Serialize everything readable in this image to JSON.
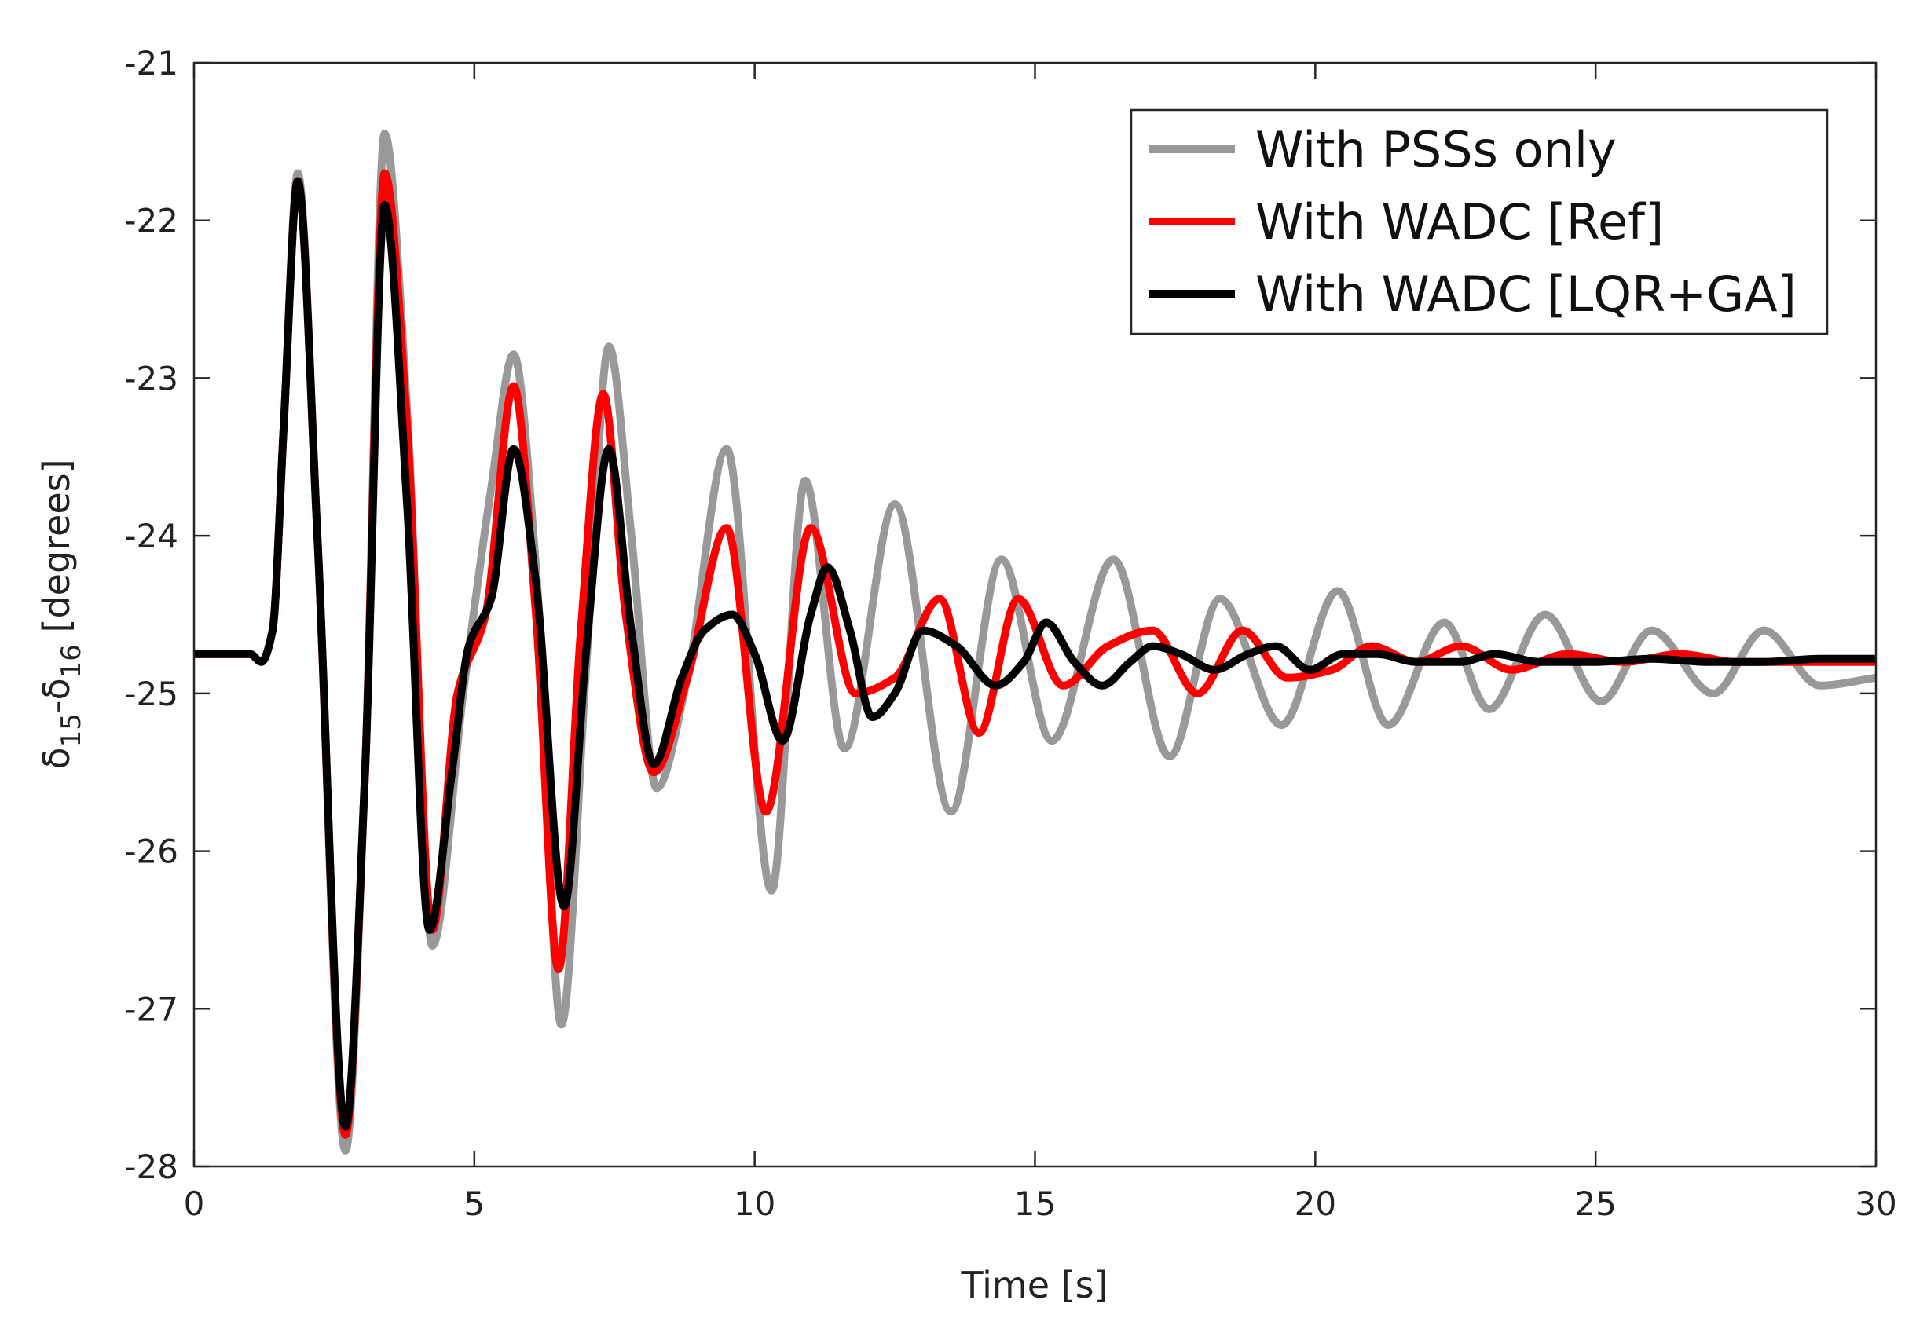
{
  "chart_data": {
    "type": "line",
    "title": "",
    "xlabel": "Time [s]",
    "ylabel": {
      "delta": "δ",
      "sub1": "15",
      "dash": "-",
      "sub2": "16",
      "unit": " [degrees]"
    },
    "xlim": [
      0,
      30
    ],
    "ylim": [
      -28,
      -21
    ],
    "xticks": [
      0,
      5,
      10,
      15,
      20,
      25,
      30
    ],
    "xtick_labels": [
      "0",
      "5",
      "10",
      "15",
      "20",
      "25",
      "30"
    ],
    "yticks": [
      -21,
      -22,
      -23,
      -24,
      -25,
      -26,
      -27,
      -28
    ],
    "ytick_labels": [
      "-21",
      "-22",
      "-23",
      "-24",
      "-25",
      "-26",
      "-27",
      "-28"
    ],
    "grid": false,
    "legend_position": "top-right",
    "series": [
      {
        "name": "With PSSs only",
        "color": "#999999",
        "x": [
          0,
          1.0,
          1.2,
          1.4,
          1.6,
          1.85,
          2.2,
          2.7,
          3.05,
          3.4,
          3.8,
          4.25,
          4.8,
          5.3,
          5.7,
          6.1,
          6.55,
          7.0,
          7.4,
          7.8,
          8.25,
          8.8,
          9.5,
          10.3,
          10.9,
          11.6,
          12.5,
          13.5,
          14.4,
          15.3,
          16.4,
          17.4,
          18.3,
          19.4,
          20.4,
          21.3,
          22.3,
          23.1,
          24.1,
          25.1,
          26.0,
          27.1,
          28.0,
          29.0,
          30.0
        ],
        "values": [
          -24.75,
          -24.75,
          -24.8,
          -24.6,
          -23.3,
          -21.7,
          -24.0,
          -27.9,
          -25.5,
          -21.45,
          -23.2,
          -26.6,
          -25.0,
          -23.7,
          -22.85,
          -24.2,
          -27.1,
          -24.8,
          -22.8,
          -24.0,
          -25.6,
          -24.9,
          -23.45,
          -26.25,
          -23.65,
          -25.35,
          -23.8,
          -25.75,
          -24.15,
          -25.3,
          -24.15,
          -25.4,
          -24.4,
          -25.2,
          -24.35,
          -25.2,
          -24.55,
          -25.1,
          -24.5,
          -25.05,
          -24.6,
          -25.0,
          -24.6,
          -24.95,
          -24.9
        ]
      },
      {
        "name": "With WADC [Ref]",
        "color": "#ff0000",
        "x": [
          0,
          1.0,
          1.2,
          1.4,
          1.6,
          1.85,
          2.2,
          2.7,
          3.05,
          3.4,
          3.8,
          4.25,
          4.7,
          5.2,
          5.7,
          6.1,
          6.5,
          6.9,
          7.3,
          7.7,
          8.2,
          8.8,
          9.5,
          10.2,
          11.0,
          11.8,
          12.5,
          13.3,
          14.0,
          14.7,
          15.5,
          16.3,
          17.1,
          17.9,
          18.7,
          19.5,
          20.3,
          21.0,
          21.8,
          22.6,
          23.5,
          24.5,
          25.5,
          26.5,
          27.5,
          28.5,
          30.0
        ],
        "values": [
          -24.75,
          -24.75,
          -24.8,
          -24.6,
          -23.3,
          -21.75,
          -24.0,
          -27.8,
          -25.5,
          -21.7,
          -23.3,
          -26.5,
          -25.0,
          -24.5,
          -23.05,
          -24.5,
          -26.75,
          -24.6,
          -23.1,
          -24.5,
          -25.5,
          -24.9,
          -23.95,
          -25.75,
          -23.95,
          -25.0,
          -24.9,
          -24.4,
          -25.25,
          -24.4,
          -24.95,
          -24.7,
          -24.6,
          -25.0,
          -24.6,
          -24.9,
          -24.85,
          -24.7,
          -24.8,
          -24.7,
          -24.85,
          -24.75,
          -24.8,
          -24.75,
          -24.8,
          -24.8,
          -24.8
        ]
      },
      {
        "name": "With WADC [LQR+GA]",
        "color": "#000000",
        "x": [
          0,
          1.0,
          1.2,
          1.4,
          1.6,
          1.85,
          2.2,
          2.7,
          3.05,
          3.4,
          3.8,
          4.2,
          4.6,
          4.9,
          5.3,
          5.7,
          6.1,
          6.6,
          7.0,
          7.4,
          7.8,
          8.2,
          8.7,
          9.1,
          9.6,
          10.0,
          10.5,
          11.0,
          11.3,
          11.7,
          12.1,
          12.5,
          13.0,
          13.6,
          14.3,
          14.8,
          15.2,
          15.7,
          16.2,
          16.7,
          17.1,
          17.6,
          18.2,
          18.8,
          19.3,
          19.9,
          20.5,
          21.1,
          21.8,
          22.6,
          23.2,
          24.0,
          25.0,
          26.0,
          27.0,
          28.0,
          29.0,
          30.0
        ],
        "values": [
          -24.75,
          -24.75,
          -24.8,
          -24.6,
          -23.3,
          -21.75,
          -24.0,
          -27.75,
          -25.5,
          -21.9,
          -23.8,
          -26.5,
          -25.5,
          -24.7,
          -24.4,
          -23.45,
          -24.3,
          -26.35,
          -24.7,
          -23.45,
          -24.6,
          -25.45,
          -24.9,
          -24.6,
          -24.5,
          -24.75,
          -25.3,
          -24.5,
          -24.2,
          -24.6,
          -25.15,
          -25.0,
          -24.6,
          -24.7,
          -24.95,
          -24.8,
          -24.55,
          -24.8,
          -24.95,
          -24.8,
          -24.7,
          -24.75,
          -24.85,
          -24.75,
          -24.7,
          -24.85,
          -24.75,
          -24.75,
          -24.8,
          -24.8,
          -24.75,
          -24.8,
          -24.8,
          -24.78,
          -24.8,
          -24.8,
          -24.78,
          -24.78
        ]
      }
    ]
  }
}
